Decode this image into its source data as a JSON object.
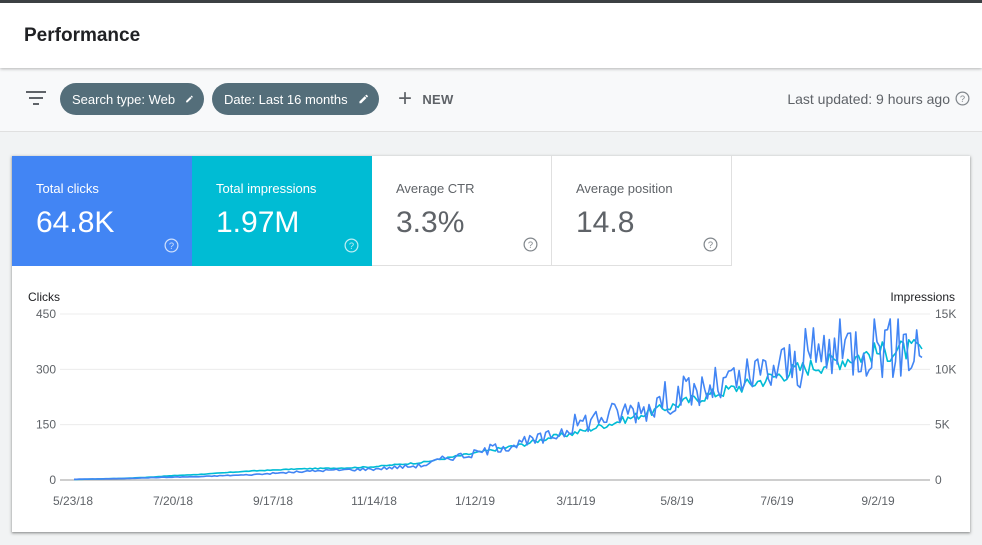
{
  "header": {
    "title": "Performance"
  },
  "filters": {
    "chips": [
      {
        "label": "Search type: Web"
      },
      {
        "label": "Date: Last 16 months"
      }
    ],
    "new_label": "NEW",
    "last_updated": "Last updated: 9 hours ago"
  },
  "metrics": {
    "clicks": {
      "label": "Total clicks",
      "value": "64.8K"
    },
    "impressions": {
      "label": "Total impressions",
      "value": "1.97M"
    },
    "ctr": {
      "label": "Average CTR",
      "value": "3.3%"
    },
    "position": {
      "label": "Average position",
      "value": "14.8"
    }
  },
  "colors": {
    "clicks": "#4285f4",
    "impressions": "#00bcd4",
    "chip": "#546e7a"
  },
  "chart_data": {
    "type": "line",
    "left_axis_title": "Clicks",
    "right_axis_title": "Impressions",
    "x_ticks": [
      "5/23/18",
      "7/20/18",
      "9/17/18",
      "11/14/18",
      "1/12/19",
      "3/11/19",
      "5/8/19",
      "7/6/19",
      "9/2/19"
    ],
    "y_left_ticks": [
      "450",
      "300",
      "150",
      "0"
    ],
    "y_right_ticks": [
      "15K",
      "10K",
      "5K",
      "0"
    ],
    "ylim_left": [
      0,
      450
    ],
    "ylim_right": [
      0,
      15000
    ],
    "series": [
      {
        "name": "Clicks",
        "axis": "left",
        "values": [
          2,
          3,
          4,
          6,
          8,
          9,
          12,
          14,
          18,
          22,
          26,
          28,
          30,
          35,
          40,
          62,
          70,
          90,
          100,
          115,
          150,
          170,
          185,
          200,
          230,
          240,
          255,
          270,
          300,
          320,
          345,
          360,
          385,
          370,
          360
        ]
      },
      {
        "name": "Impressions",
        "axis": "right",
        "values": [
          50,
          100,
          150,
          250,
          400,
          500,
          650,
          800,
          900,
          1000,
          1050,
          1100,
          1200,
          1400,
          1600,
          2000,
          2400,
          2800,
          3200,
          3800,
          4200,
          4800,
          5400,
          6100,
          6700,
          7400,
          8000,
          8600,
          9300,
          10000,
          10500,
          11000,
          11500,
          11700,
          11800
        ]
      }
    ]
  }
}
